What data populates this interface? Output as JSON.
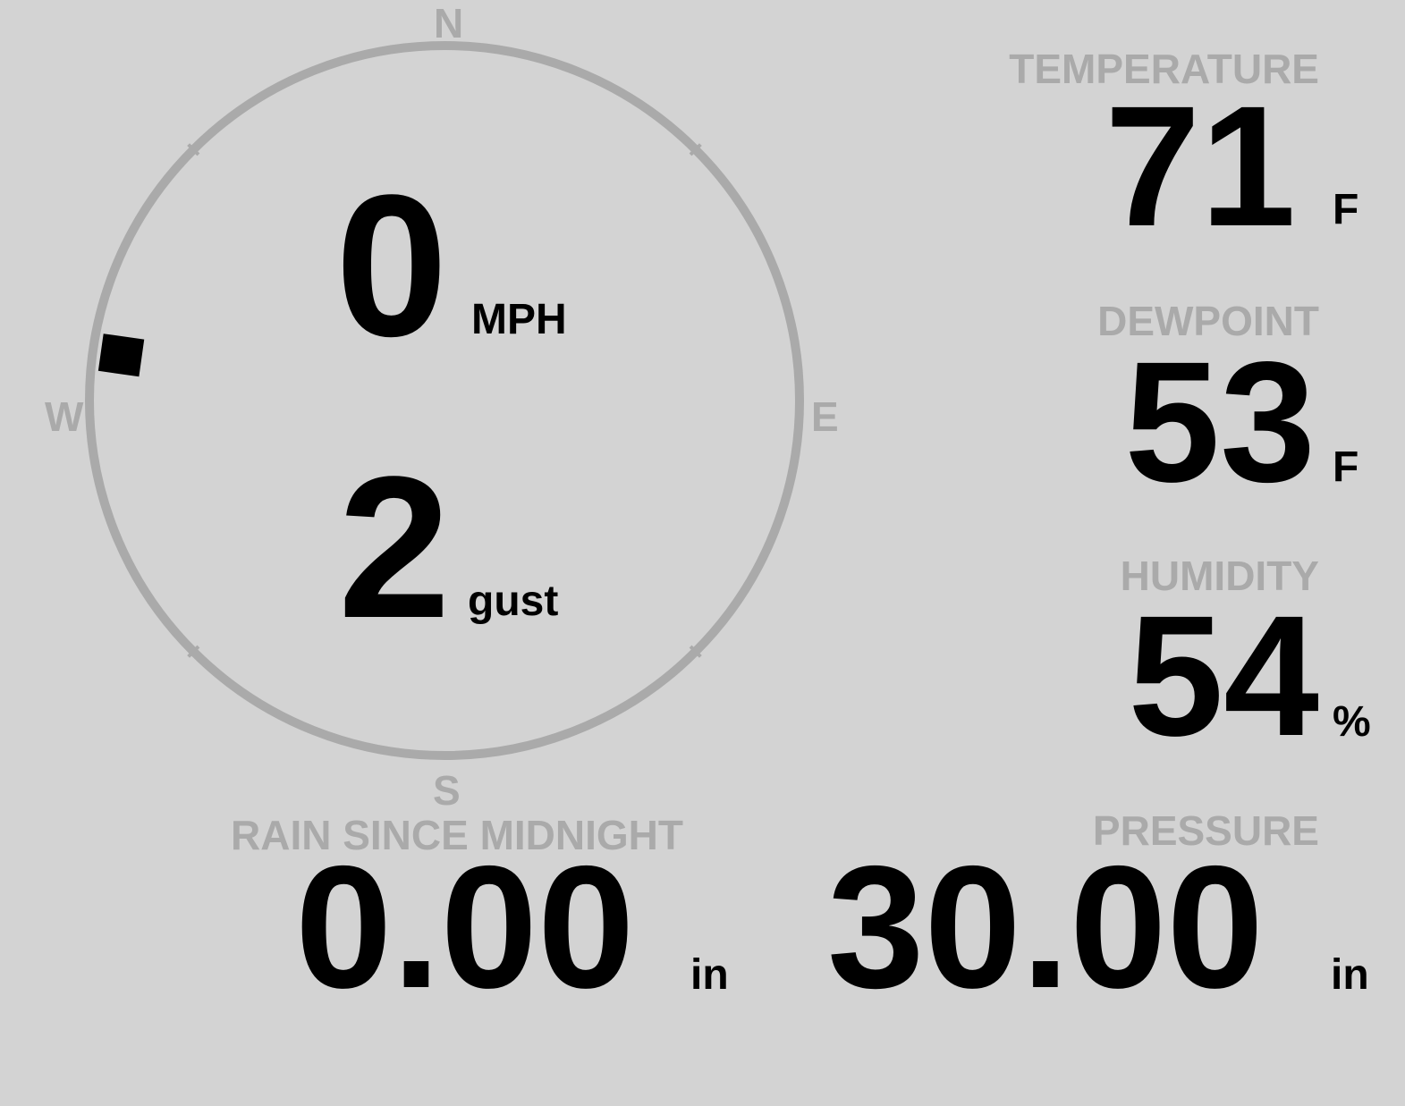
{
  "wind": {
    "speed": "0",
    "speed_unit": "MPH",
    "gust": "2",
    "gust_label": "gust",
    "direction_deg": 278,
    "compass": {
      "n": "N",
      "e": "E",
      "s": "S",
      "w": "W"
    }
  },
  "temperature": {
    "label": "TEMPERATURE",
    "value": "71",
    "unit": "F"
  },
  "dewpoint": {
    "label": "DEWPOINT",
    "value": "53",
    "unit": "F"
  },
  "humidity": {
    "label": "HUMIDITY",
    "value": "54",
    "unit": "%"
  },
  "rain": {
    "label": "RAIN SINCE MIDNIGHT",
    "value": "0.00",
    "unit": "in"
  },
  "pressure": {
    "label": "PRESSURE",
    "value": "30.00",
    "unit": "in"
  },
  "colors": {
    "background": "#d3d3d3",
    "ring": "#aaaaaa",
    "label": "#aaaaaa",
    "value": "#000000"
  }
}
